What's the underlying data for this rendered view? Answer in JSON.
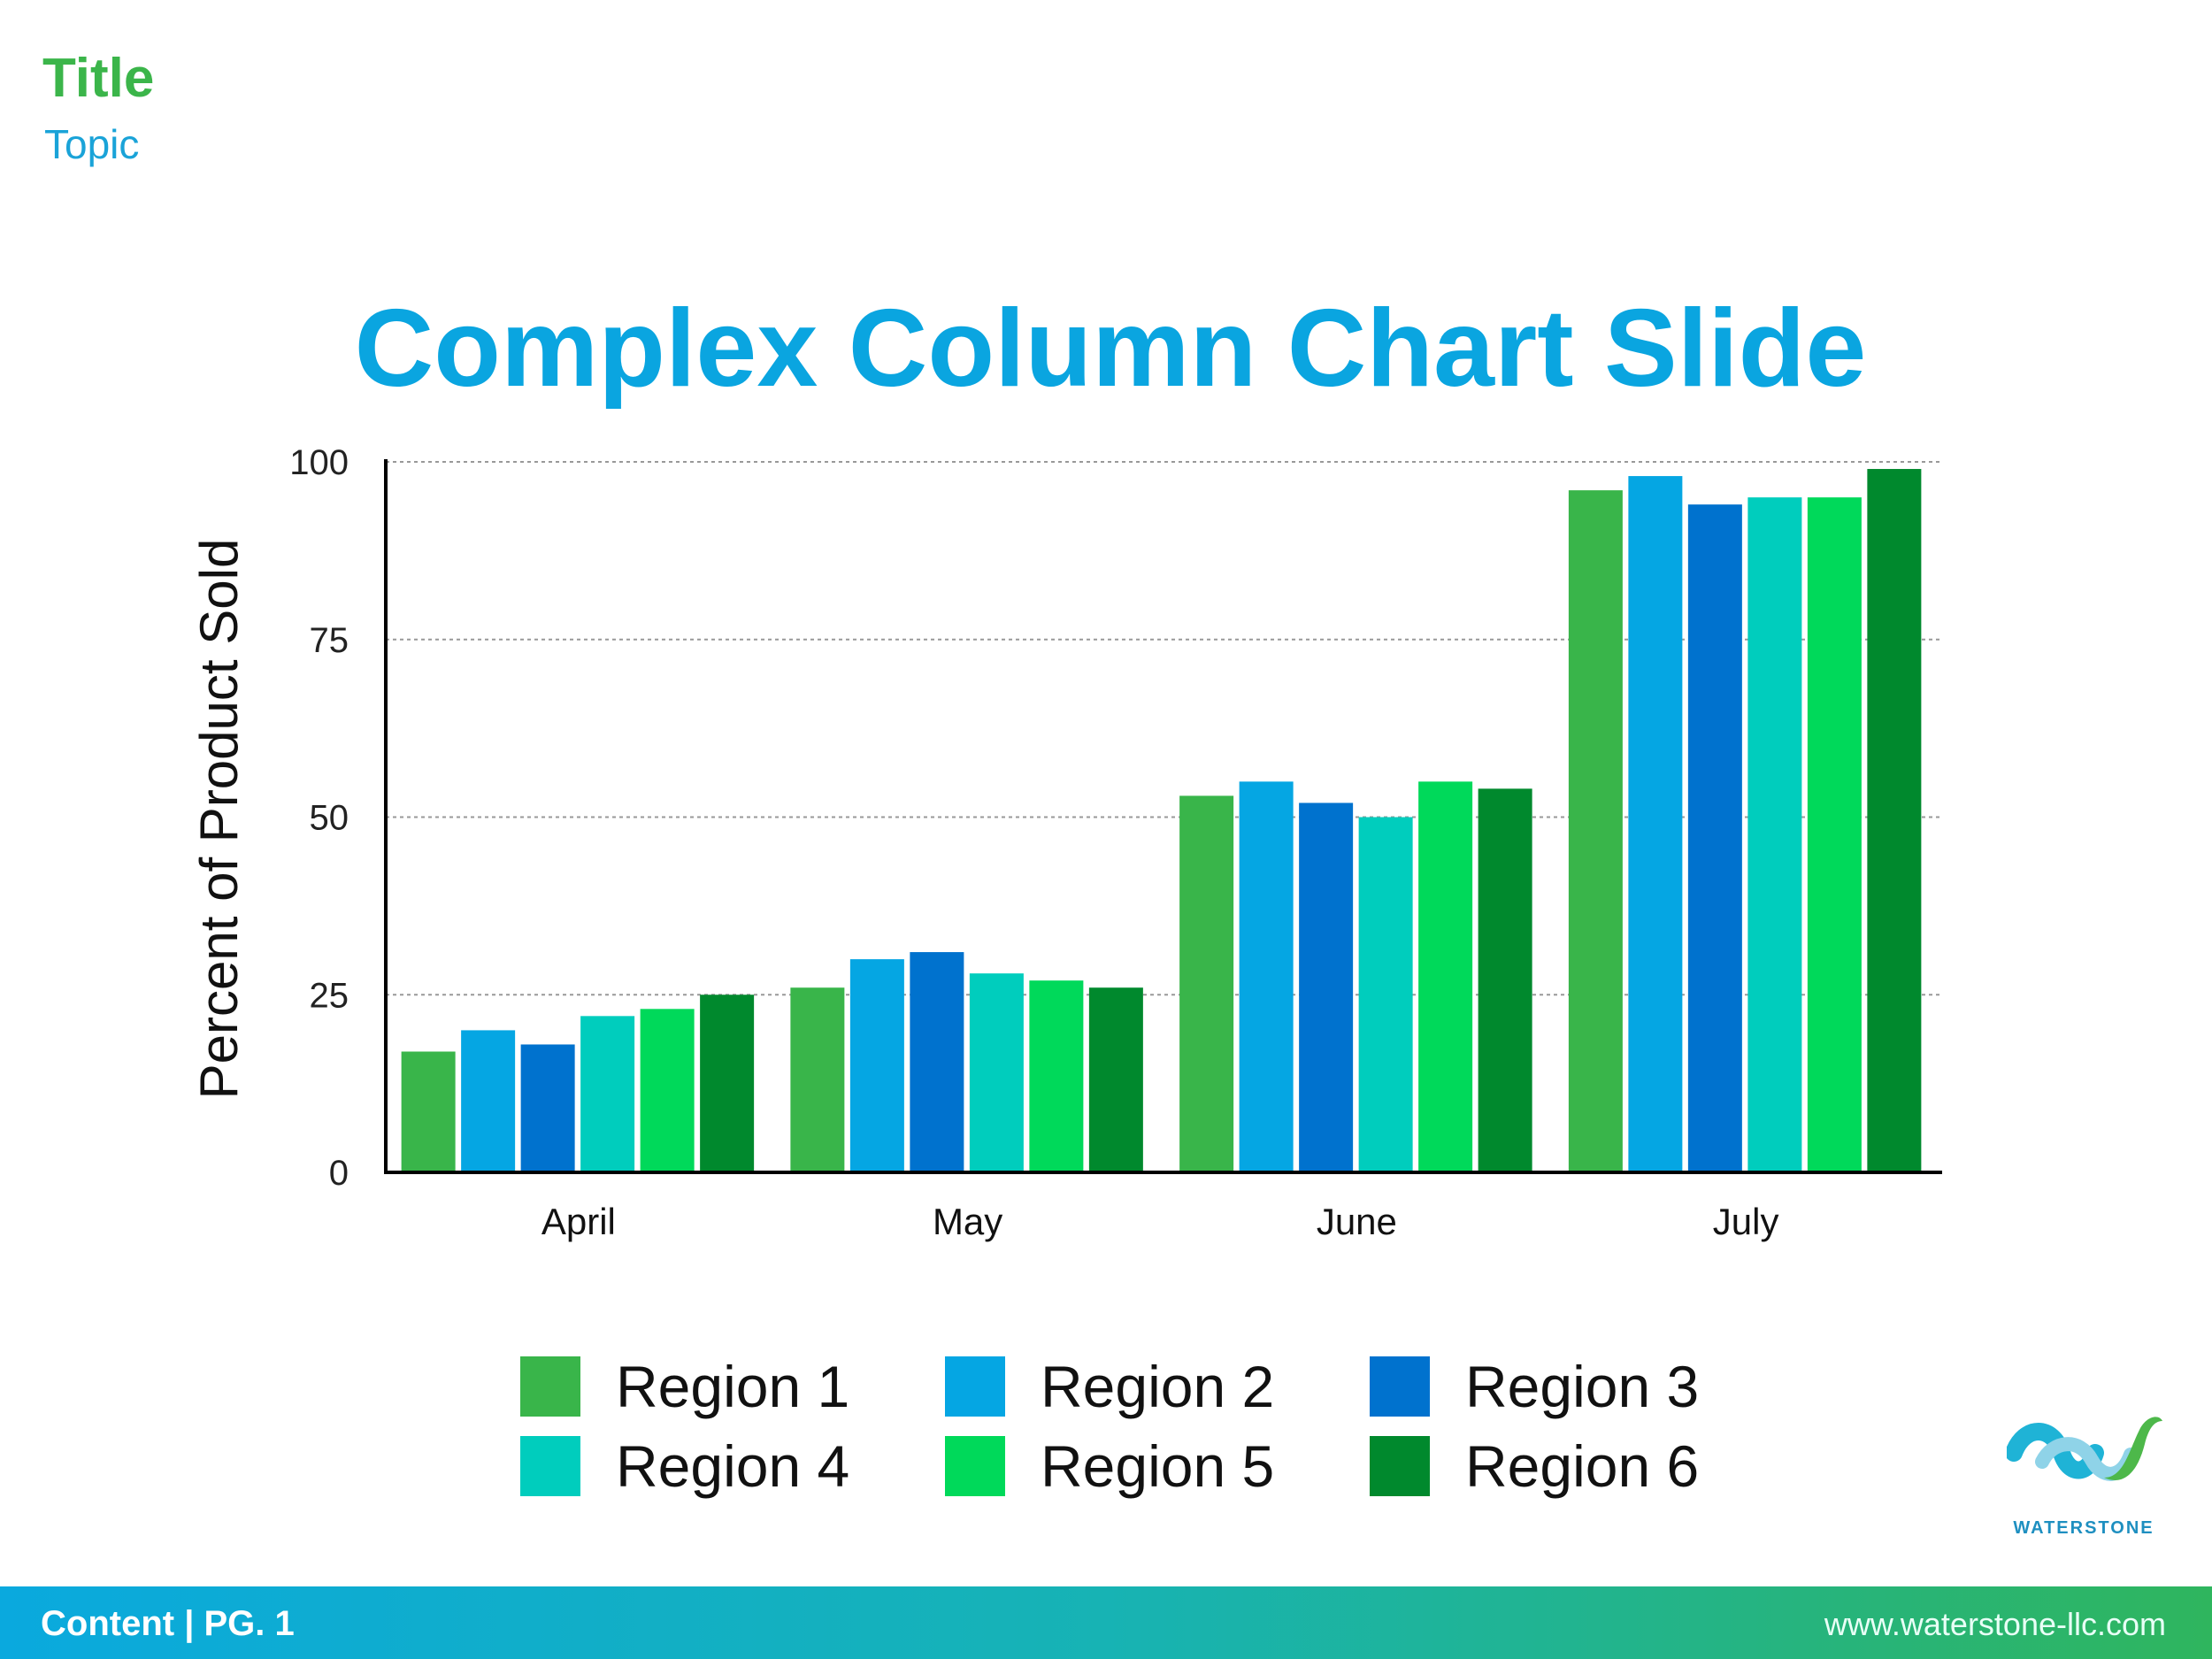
{
  "header": {
    "title": "Title",
    "topic": "Topic"
  },
  "chart_data": {
    "type": "bar",
    "title": "Complex Column Chart Slide",
    "xlabel": "",
    "ylabel": "Percent of Product Sold",
    "ylim": [
      0,
      100
    ],
    "yticks": [
      0,
      25,
      50,
      75,
      100
    ],
    "grid": true,
    "legend_position": "bottom",
    "categories": [
      "April",
      "May",
      "June",
      "July"
    ],
    "series": [
      {
        "name": "Region 1",
        "color": "#39b54a",
        "values": [
          17,
          26,
          53,
          96
        ]
      },
      {
        "name": "Region 2",
        "color": "#05a6e3",
        "values": [
          20,
          30,
          55,
          98
        ]
      },
      {
        "name": "Region 3",
        "color": "#0072ce",
        "values": [
          18,
          31,
          52,
          94
        ]
      },
      {
        "name": "Region 4",
        "color": "#00cdbd",
        "values": [
          22,
          28,
          50,
          95
        ]
      },
      {
        "name": "Region 5",
        "color": "#00d95a",
        "values": [
          23,
          27,
          55,
          95
        ]
      },
      {
        "name": "Region 6",
        "color": "#00892d",
        "values": [
          25,
          26,
          54,
          99
        ]
      }
    ]
  },
  "footer": {
    "left": "Content | PG. 1",
    "right": "www.waterstone-llc.com"
  },
  "logo": {
    "text": "WATERSTONE"
  }
}
